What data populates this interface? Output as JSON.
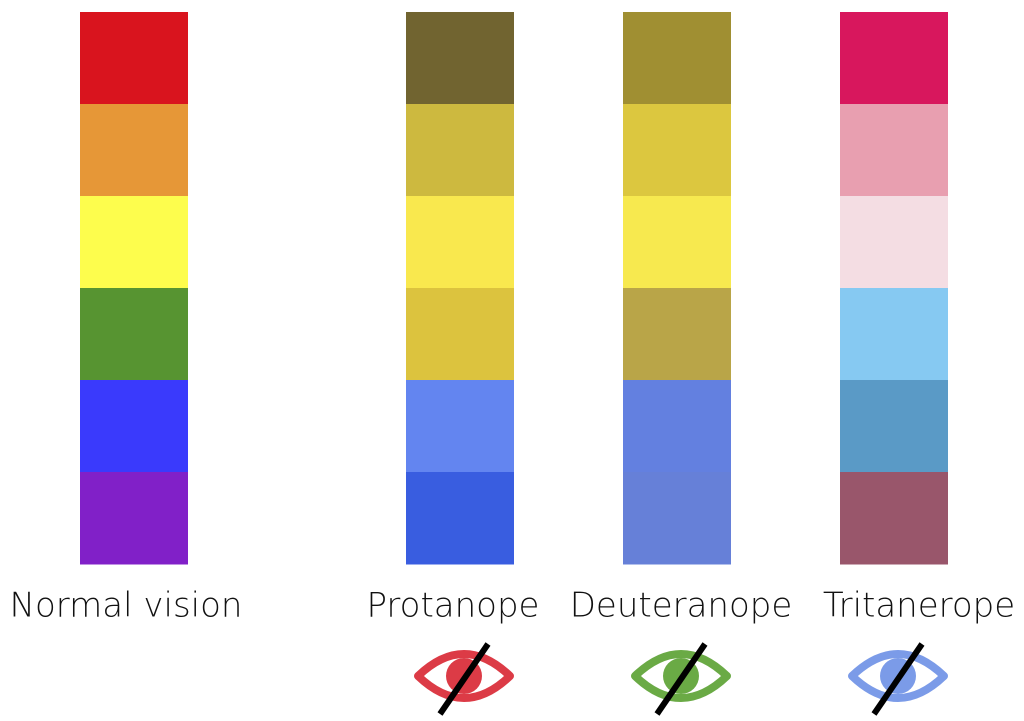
{
  "columns": [
    {
      "label": "Normal vision",
      "colors": [
        "#d9141e",
        "#e69737",
        "#fdfd4d",
        "#579431",
        "#3a3afc",
        "#8120c8"
      ]
    },
    {
      "label": "Protanope",
      "colors": [
        "#716430",
        "#cdb93f",
        "#f9e84e",
        "#dcc33e",
        "#6385f0",
        "#395de0"
      ],
      "icon_color": "#dc3b46"
    },
    {
      "label": "Deuteranope",
      "colors": [
        "#a08f32",
        "#dcc73f",
        "#f7e94f",
        "#b9a548",
        "#6380e0",
        "#6680d8"
      ],
      "icon_color": "#6aaa45"
    },
    {
      "label": "Tritanerope",
      "colors": [
        "#d8175d",
        "#e89fb0",
        "#f4dde3",
        "#86c9f2",
        "#5a9ac6",
        "#99566b"
      ],
      "icon_color": "#7b9be8"
    }
  ]
}
